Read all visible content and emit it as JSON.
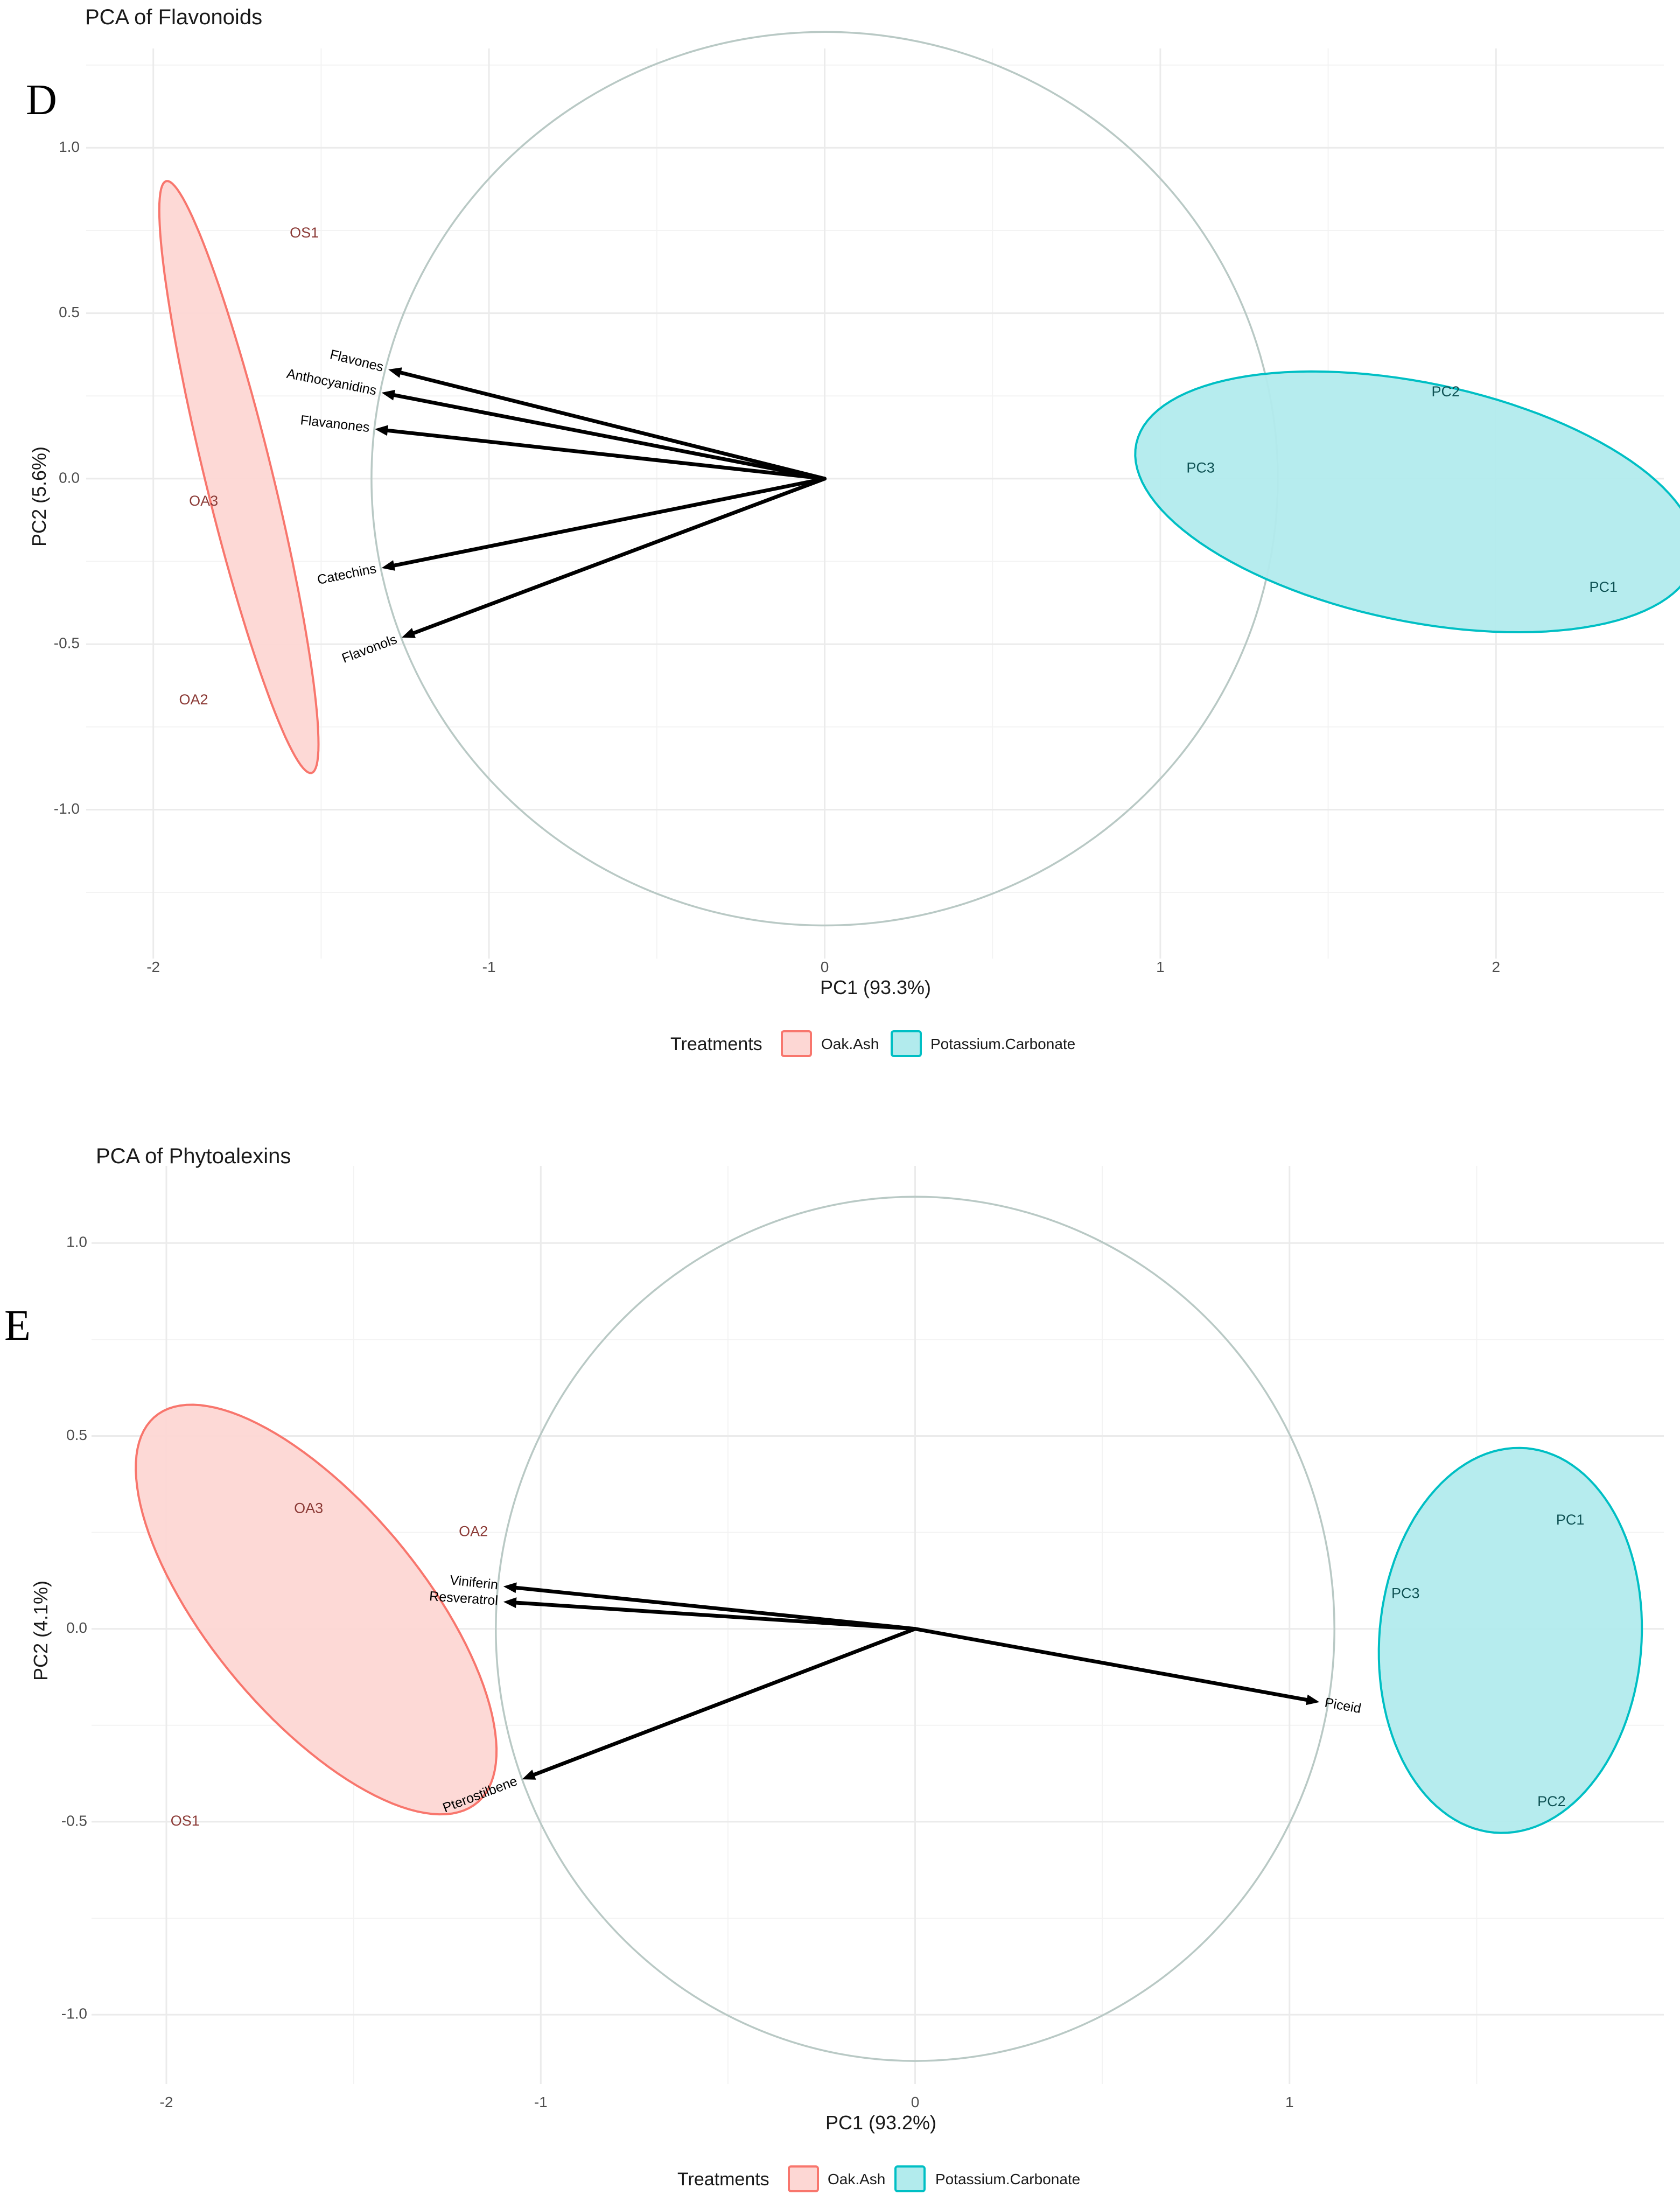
{
  "chart_data": [
    {
      "type": "scatter",
      "panel_letter": "D",
      "title": "PCA of Flavonoids",
      "xlabel": "PC1 (93.3%)",
      "ylabel": "PC2 (5.6%)",
      "xlim": [
        -2.2,
        2.5
      ],
      "ylim": [
        -1.45,
        1.3
      ],
      "xticks": [
        -2,
        -1,
        0,
        1,
        2
      ],
      "yticks": [
        -1.0,
        -0.5,
        0.0,
        0.5,
        1.0
      ],
      "xtick_labels": [
        "-2",
        "-1",
        "0",
        "1",
        "2"
      ],
      "ytick_labels": [
        "-1.0",
        "-0.5",
        "0.0",
        "0.5",
        "1.0"
      ],
      "grid": true,
      "correlation_circle_radius": 1.35,
      "points": [
        {
          "label": "OS1",
          "group": "Oak.Ash",
          "x": -1.55,
          "y": 0.74
        },
        {
          "label": "OA3",
          "group": "Oak.Ash",
          "x": -1.85,
          "y": -0.07
        },
        {
          "label": "OA2",
          "group": "Oak.Ash",
          "x": -1.88,
          "y": -0.67
        },
        {
          "label": "PC2",
          "group": "Potassium.Carbonate",
          "x": 1.85,
          "y": 0.26
        },
        {
          "label": "PC3",
          "group": "Potassium.Carbonate",
          "x": 1.12,
          "y": 0.03
        },
        {
          "label": "PC1",
          "group": "Potassium.Carbonate",
          "x": 2.32,
          "y": -0.33
        }
      ],
      "vectors": [
        {
          "label": "Flavones",
          "x": -1.3,
          "y": 0.33
        },
        {
          "label": "Anthocyanidins",
          "x": -1.32,
          "y": 0.26
        },
        {
          "label": "Flavanones",
          "x": -1.34,
          "y": 0.15
        },
        {
          "label": "Catechins",
          "x": -1.32,
          "y": -0.27
        },
        {
          "label": "Flavonols",
          "x": -1.26,
          "y": -0.48
        }
      ],
      "ellipses": [
        {
          "group": "Oak.Ash",
          "cx": -1.745,
          "cy": 0.005,
          "rx": 0.1,
          "ry": 0.92,
          "angle": 13.6
        },
        {
          "group": "Potassium.Carbonate",
          "cx": 1.76,
          "cy": -0.07,
          "rx": 0.85,
          "ry": 0.36,
          "angle": -12
        }
      ],
      "legend": {
        "title": "Treatments",
        "entries": [
          "Oak.Ash",
          "Potassium.Carbonate"
        ],
        "position": "bottom"
      }
    },
    {
      "type": "scatter",
      "panel_letter": "E",
      "title": "PCA of Phytoalexins",
      "xlabel": "PC1 (93.2%)",
      "ylabel": "PC2 (4.1%)",
      "xlim": [
        -2.2,
        2.0
      ],
      "ylim": [
        -1.18,
        1.2
      ],
      "xticks": [
        -2,
        -1,
        0,
        1
      ],
      "yticks": [
        -1.0,
        -0.5,
        0.0,
        0.5,
        1.0
      ],
      "xtick_labels": [
        "-2",
        "-1",
        "0",
        "1"
      ],
      "ytick_labels": [
        "-1.0",
        "-0.5",
        "0.0",
        "0.5",
        "1.0"
      ],
      "grid": true,
      "correlation_circle_radius": 1.12,
      "points": [
        {
          "label": "OA3",
          "group": "Oak.Ash",
          "x": -1.62,
          "y": 0.31
        },
        {
          "label": "OA2",
          "group": "Oak.Ash",
          "x": -1.18,
          "y": 0.25
        },
        {
          "label": "OS1",
          "group": "Oak.Ash",
          "x": -1.95,
          "y": -0.5
        },
        {
          "label": "PC1",
          "group": "Potassium.Carbonate",
          "x": 1.75,
          "y": 0.28
        },
        {
          "label": "PC3",
          "group": "Potassium.Carbonate",
          "x": 1.31,
          "y": 0.09
        },
        {
          "label": "PC2",
          "group": "Potassium.Carbonate",
          "x": 1.7,
          "y": -0.45
        }
      ],
      "vectors": [
        {
          "label": "Viniferin",
          "x": -1.1,
          "y": 0.11
        },
        {
          "label": "Resveratrol",
          "x": -1.1,
          "y": 0.07
        },
        {
          "label": "Pterostilbene",
          "x": -1.05,
          "y": -0.39
        },
        {
          "label": "Piceid",
          "x": 1.08,
          "y": -0.19
        }
      ],
      "ellipses": [
        {
          "group": "Oak.Ash",
          "cx": -1.6,
          "cy": 0.05,
          "rx": 0.28,
          "ry": 0.66,
          "angle": 41
        },
        {
          "group": "Potassium.Carbonate",
          "cx": 1.59,
          "cy": -0.03,
          "rx": 0.35,
          "ry": 0.5,
          "angle": -5
        }
      ],
      "legend": {
        "title": "Treatments",
        "entries": [
          "Oak.Ash",
          "Potassium.Carbonate"
        ],
        "position": "bottom"
      }
    }
  ],
  "colors": {
    "Oak.Ash": {
      "stroke": "#f8766d",
      "fill": "#fdd7d4",
      "label": "#8b3a36"
    },
    "Potassium.Carbonate": {
      "stroke": "#00bfc4",
      "fill": "#b2ebed",
      "label": "#0f5254"
    },
    "vector": "#000000",
    "circle": "#b9c9c5"
  }
}
